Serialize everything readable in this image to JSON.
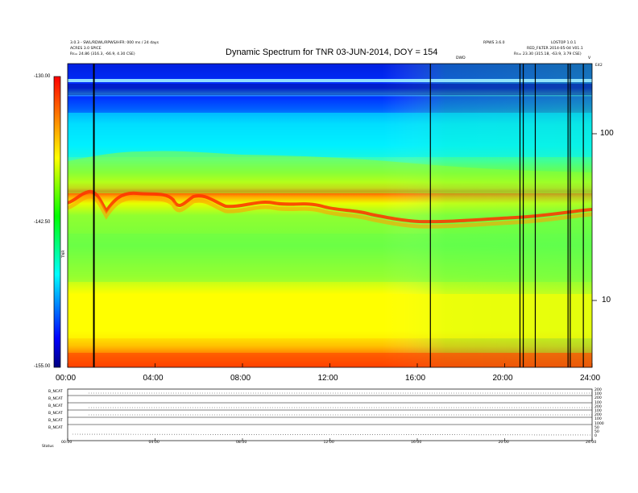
{
  "header": {
    "title": "Dynamic Spectrum for TNR 03-JUN-2014, DOY = 154",
    "left_line1": "3.0.3 - SWL/RDWL/RPWS/HFR: 000 ms / 24 days",
    "left_line2": "ACRES 3.0 SPICE",
    "left_line3": "Rs= 24.86 (316.3, -66.9, 4.30 CSE)",
    "right_line1": "LOSTOP 1.0.1",
    "right_line2": "RPWS 3.6.0",
    "right_line3": "RED_FILTER 2014-05-04 V01.1",
    "right_line4": "Rs= 23.30 (315.18, -63.9, 3.79 CSE)",
    "right_code": "DWD",
    "right_marker": "V",
    "right_marker2": "E42"
  },
  "chart_data": {
    "type": "heatmap",
    "title": "Dynamic Spectrum for TNR 03-JUN-2014, DOY = 154",
    "x_tick_labels": [
      "00:00",
      "04:00",
      "08:00",
      "12:00",
      "16:00",
      "20:00",
      "24:00"
    ],
    "x_ticks_hours": [
      0,
      4,
      8,
      12,
      16,
      20,
      24
    ],
    "xlim_hours": [
      0,
      24
    ],
    "y_tick_labels": [
      "100",
      "10"
    ],
    "y_ticks": [
      100,
      10
    ],
    "ylim": [
      4,
      200
    ],
    "y_scale": "log",
    "colorbar": {
      "label": "TNR",
      "tick_labels": [
        "-130.00",
        "-142.50",
        "-155.00"
      ],
      "range": [
        -155,
        -130
      ],
      "colors": [
        "#000080",
        "#0000ff",
        "#00ffff",
        "#00ff00",
        "#ffff00",
        "#ff8000",
        "#ff0000"
      ]
    },
    "dropout_lines_hours": [
      1.2,
      16.6,
      20.7,
      20.85,
      21.4,
      22.9,
      23.0,
      23.6
    ]
  },
  "lower_panel": {
    "row_labels": [
      "B_NCAT",
      "B_NCAT",
      "B_NCAT",
      "B_NCAT",
      "B_NCAT",
      "B_NCAT"
    ],
    "right_labels": [
      "200",
      "100",
      "200",
      "100",
      "200",
      "100",
      "200",
      "100",
      "1000",
      "50",
      "50",
      "0"
    ],
    "x_tick_labels": [
      "00:00",
      "04:00",
      "08:00",
      "12:00",
      "16:00",
      "20:00",
      "24:00"
    ],
    "footer_label": "Status"
  }
}
